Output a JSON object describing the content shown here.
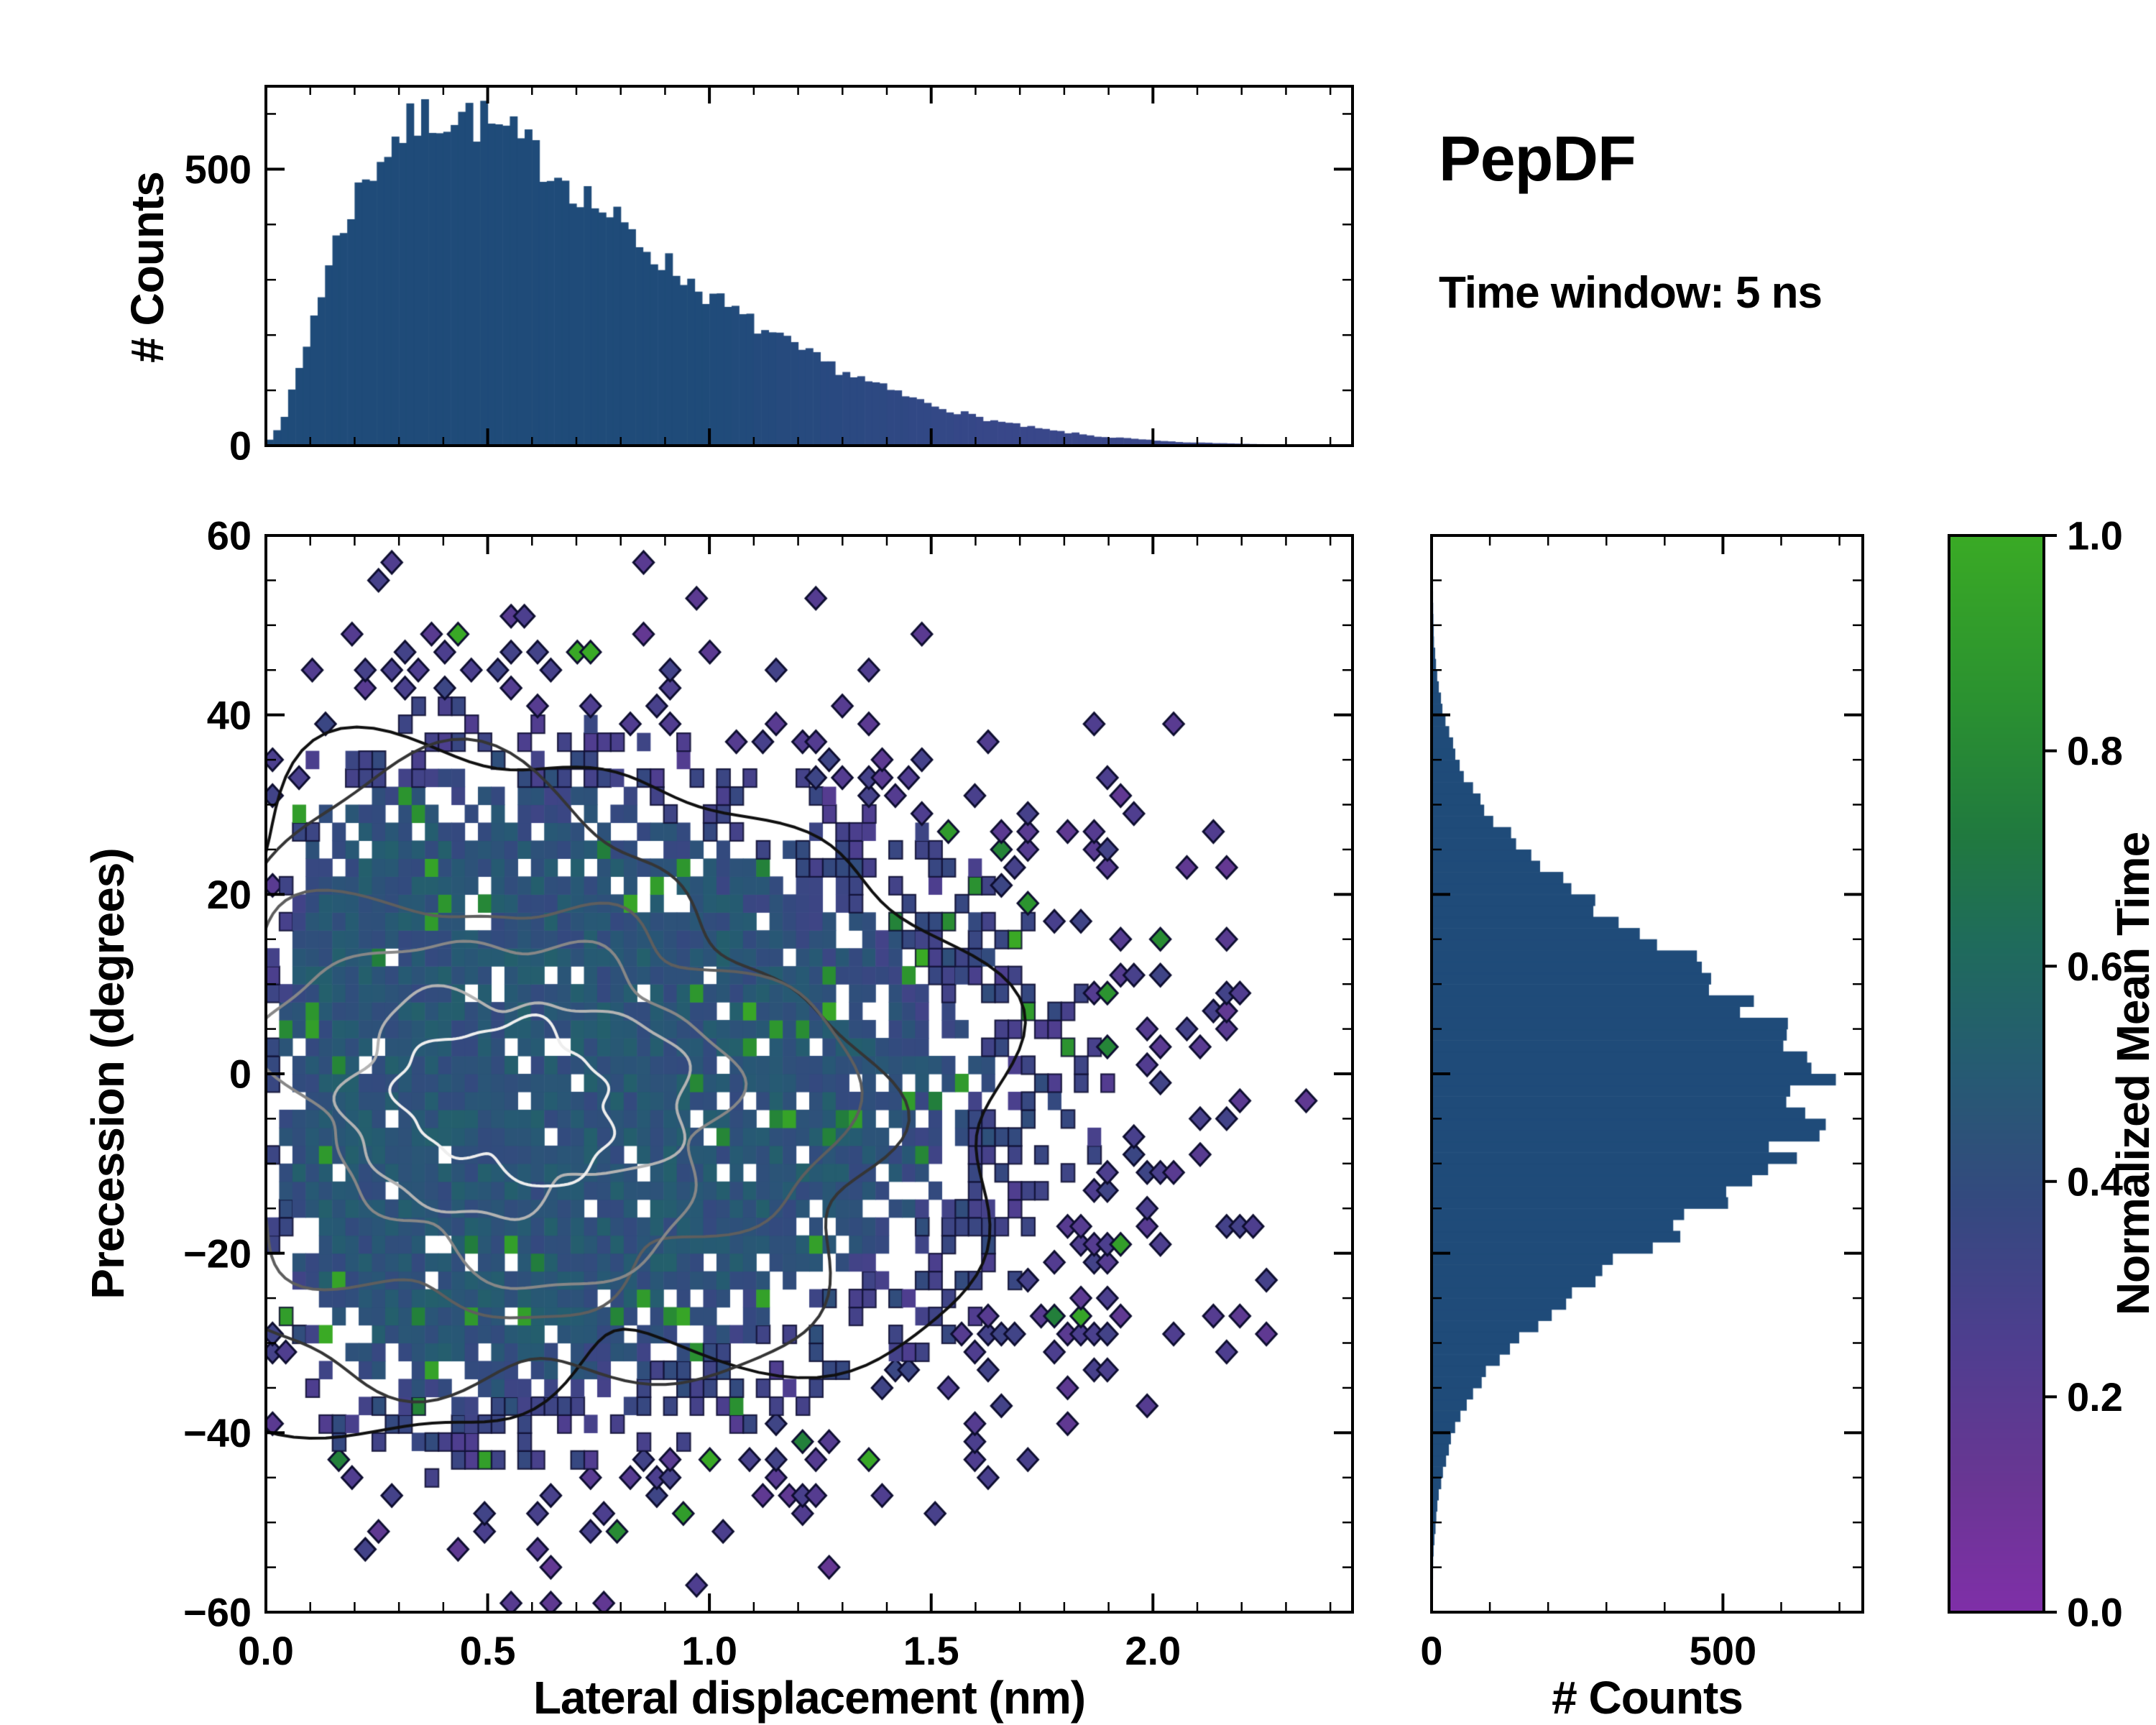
{
  "title": "PepDF",
  "subtitle": "Time window: 5 ns",
  "labels": {
    "top_ylabel": "# Counts",
    "main_xlabel": "Lateral displacement (nm)",
    "main_ylabel": "Precession (degrees)",
    "right_xlabel": "# Counts",
    "cbar_label": "Normalized Mean Time"
  },
  "colors": {
    "bar": "#1f4b79",
    "bar_tail": "#4f4398",
    "frame": "#000000",
    "background": "#ffffff"
  },
  "colormap": {
    "label": "Normalized Mean Time",
    "stops": [
      [
        0.0,
        "#7f2fa8"
      ],
      [
        0.12,
        "#693693"
      ],
      [
        0.25,
        "#4e3e8f"
      ],
      [
        0.38,
        "#34497f"
      ],
      [
        0.5,
        "#265a73"
      ],
      [
        0.62,
        "#1f6b5c"
      ],
      [
        0.72,
        "#20793f"
      ],
      [
        0.85,
        "#2b9230"
      ],
      [
        1.0,
        "#3aaa25"
      ]
    ]
  },
  "axes": {
    "main": {
      "xlim": [
        0,
        2.45
      ],
      "ylim": [
        -60,
        60
      ],
      "xticks": [
        "0.0",
        "0.5",
        "1.0",
        "1.5",
        "2.0"
      ],
      "xtick_vals": [
        0,
        0.5,
        1.0,
        1.5,
        2.0
      ],
      "yticks": [
        "−60",
        "−40",
        "−20",
        "0",
        "20",
        "40",
        "60"
      ],
      "ytick_vals": [
        -60,
        -40,
        -20,
        0,
        20,
        40,
        60
      ]
    },
    "top": {
      "ylim": [
        0,
        650
      ],
      "yticks": [
        "0",
        "500"
      ],
      "ytick_vals": [
        0,
        500
      ],
      "yminor_vals": [
        100,
        200,
        300,
        400,
        600
      ]
    },
    "right": {
      "xlim": [
        0,
        740
      ],
      "xticks": [
        "0",
        "500"
      ],
      "xtick_vals": [
        0,
        500
      ],
      "xminor_vals": [
        100,
        200,
        300,
        400,
        600,
        700
      ]
    },
    "cbar": {
      "ticks": [
        "0.0",
        "0.2",
        "0.4",
        "0.6",
        "0.8",
        "1.0"
      ],
      "tick_vals": [
        0,
        0.2,
        0.4,
        0.6,
        0.8,
        1.0
      ]
    }
  },
  "chart_data": [
    {
      "type": "bar",
      "role": "top-marginal-histogram",
      "title": "",
      "xlabel": "Lateral displacement (nm)",
      "ylabel": "# Counts",
      "xlim": [
        0,
        2.45
      ],
      "ylim": [
        0,
        650
      ],
      "bin_width": 0.05,
      "bin_centers": [
        0.025,
        0.075,
        0.125,
        0.175,
        0.225,
        0.275,
        0.325,
        0.375,
        0.425,
        0.475,
        0.525,
        0.575,
        0.625,
        0.675,
        0.725,
        0.775,
        0.825,
        0.875,
        0.925,
        0.975,
        1.025,
        1.075,
        1.125,
        1.175,
        1.225,
        1.275,
        1.325,
        1.375,
        1.425,
        1.475,
        1.525,
        1.575,
        1.625,
        1.675,
        1.725,
        1.775,
        1.825,
        1.875,
        1.925,
        1.975,
        2.025,
        2.075,
        2.125,
        2.175,
        2.225,
        2.275,
        2.325,
        2.375,
        2.425
      ],
      "counts": [
        30,
        140,
        280,
        400,
        480,
        540,
        575,
        595,
        600,
        590,
        570,
        545,
        515,
        485,
        450,
        415,
        380,
        348,
        316,
        286,
        258,
        232,
        208,
        185,
        164,
        145,
        127,
        110,
        95,
        81,
        69,
        58,
        48,
        40,
        33,
        27,
        22,
        17,
        14,
        11,
        8,
        6,
        5,
        4,
        3,
        2,
        1,
        1,
        0
      ]
    },
    {
      "type": "heatmap",
      "role": "joint-2d-histogram",
      "xlabel": "Lateral displacement (nm)",
      "ylabel": "Precession (degrees)",
      "xlim": [
        0,
        2.45
      ],
      "ylim": [
        -60,
        60
      ],
      "bin_size_nm": 0.03,
      "bin_size_deg": 2,
      "color_label": "Normalized Mean Time",
      "color_range": [
        0,
        1
      ],
      "dominant_value": 0.45,
      "edge_value": 0.22,
      "x_mode": 0.45,
      "y_mean": -2,
      "y_sigma": 16,
      "contours": {
        "center": [
          0.55,
          -3
        ],
        "levels_rx_nm": [
          1.02,
          0.82,
          0.64,
          0.49,
          0.35,
          0.235
        ],
        "levels_ry_deg": [
          40,
          32,
          25,
          18.5,
          13,
          8.5
        ],
        "colors": [
          "#101010",
          "#353535",
          "#5e5e5e",
          "#878787",
          "#b3b3b3",
          "#eeeeee"
        ]
      }
    },
    {
      "type": "bar",
      "role": "right-marginal-histogram",
      "orientation": "horizontal",
      "xlabel": "# Counts",
      "ylabel": "Precession (degrees)",
      "xlim": [
        0,
        740
      ],
      "ylim": [
        -60,
        60
      ],
      "bin_width": 2.5,
      "bin_centers": [
        -58.75,
        -56.25,
        -53.75,
        -51.25,
        -48.75,
        -46.25,
        -43.75,
        -41.25,
        -38.75,
        -36.25,
        -33.75,
        -31.25,
        -28.75,
        -26.25,
        -23.75,
        -21.25,
        -18.75,
        -16.25,
        -13.75,
        -11.25,
        -8.75,
        -6.25,
        -3.75,
        -1.25,
        1.25,
        3.75,
        6.25,
        8.75,
        11.25,
        13.75,
        16.25,
        18.75,
        21.25,
        23.75,
        26.25,
        28.75,
        31.25,
        33.75,
        36.25,
        38.75,
        41.25,
        43.75,
        46.25,
        48.75,
        51.25,
        53.75,
        56.25,
        58.75
      ],
      "counts": [
        1,
        2,
        3,
        6,
        9,
        14,
        22,
        32,
        47,
        67,
        92,
        124,
        163,
        209,
        262,
        320,
        381,
        444,
        504,
        558,
        604,
        637,
        656,
        659,
        647,
        618,
        578,
        527,
        469,
        407,
        344,
        285,
        230,
        181,
        139,
        104,
        76,
        54,
        38,
        26,
        17,
        11,
        7,
        4,
        3,
        2,
        1,
        1
      ]
    }
  ]
}
